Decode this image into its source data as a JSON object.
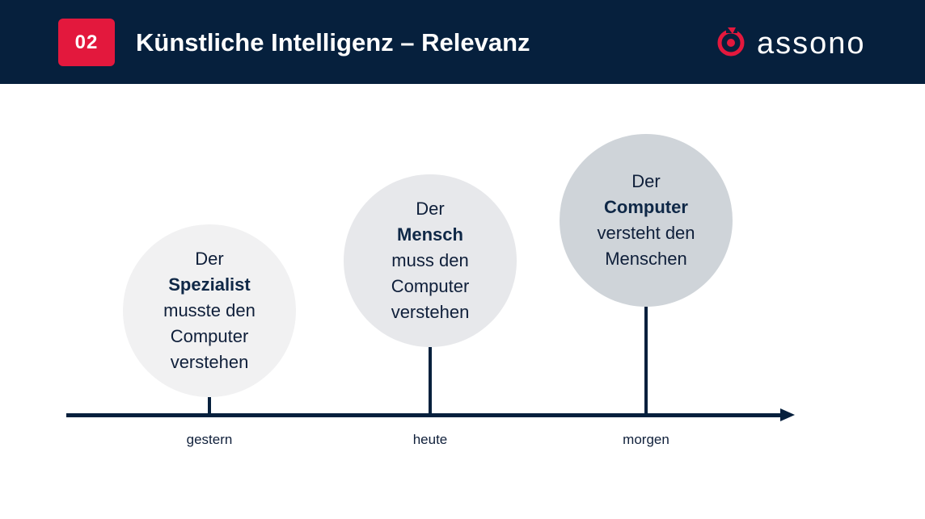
{
  "header": {
    "badge": "02",
    "title": "Künstliche Intelligenz – Relevanz",
    "logo_text": "assono",
    "colors": {
      "background": "#06203d",
      "badge": "#e3183d",
      "logo_mark": "#e3183d"
    }
  },
  "timeline": {
    "stages": [
      {
        "lines": [
          "Der",
          "Spezialist",
          "musste den",
          "Computer",
          "verstehen"
        ],
        "bold_index": 1,
        "label": "gestern",
        "color": "#f1f1f2"
      },
      {
        "lines": [
          "Der",
          "Mensch",
          "muss den",
          "Computer",
          "verstehen"
        ],
        "bold_index": 1,
        "label": "heute",
        "color": "#e7e8eb"
      },
      {
        "lines": [
          "Der",
          "Computer",
          "versteht den",
          "Menschen"
        ],
        "bold_index": 1,
        "label": "morgen",
        "color": "#cfd4d9"
      }
    ],
    "axis_color": "#06203d"
  }
}
